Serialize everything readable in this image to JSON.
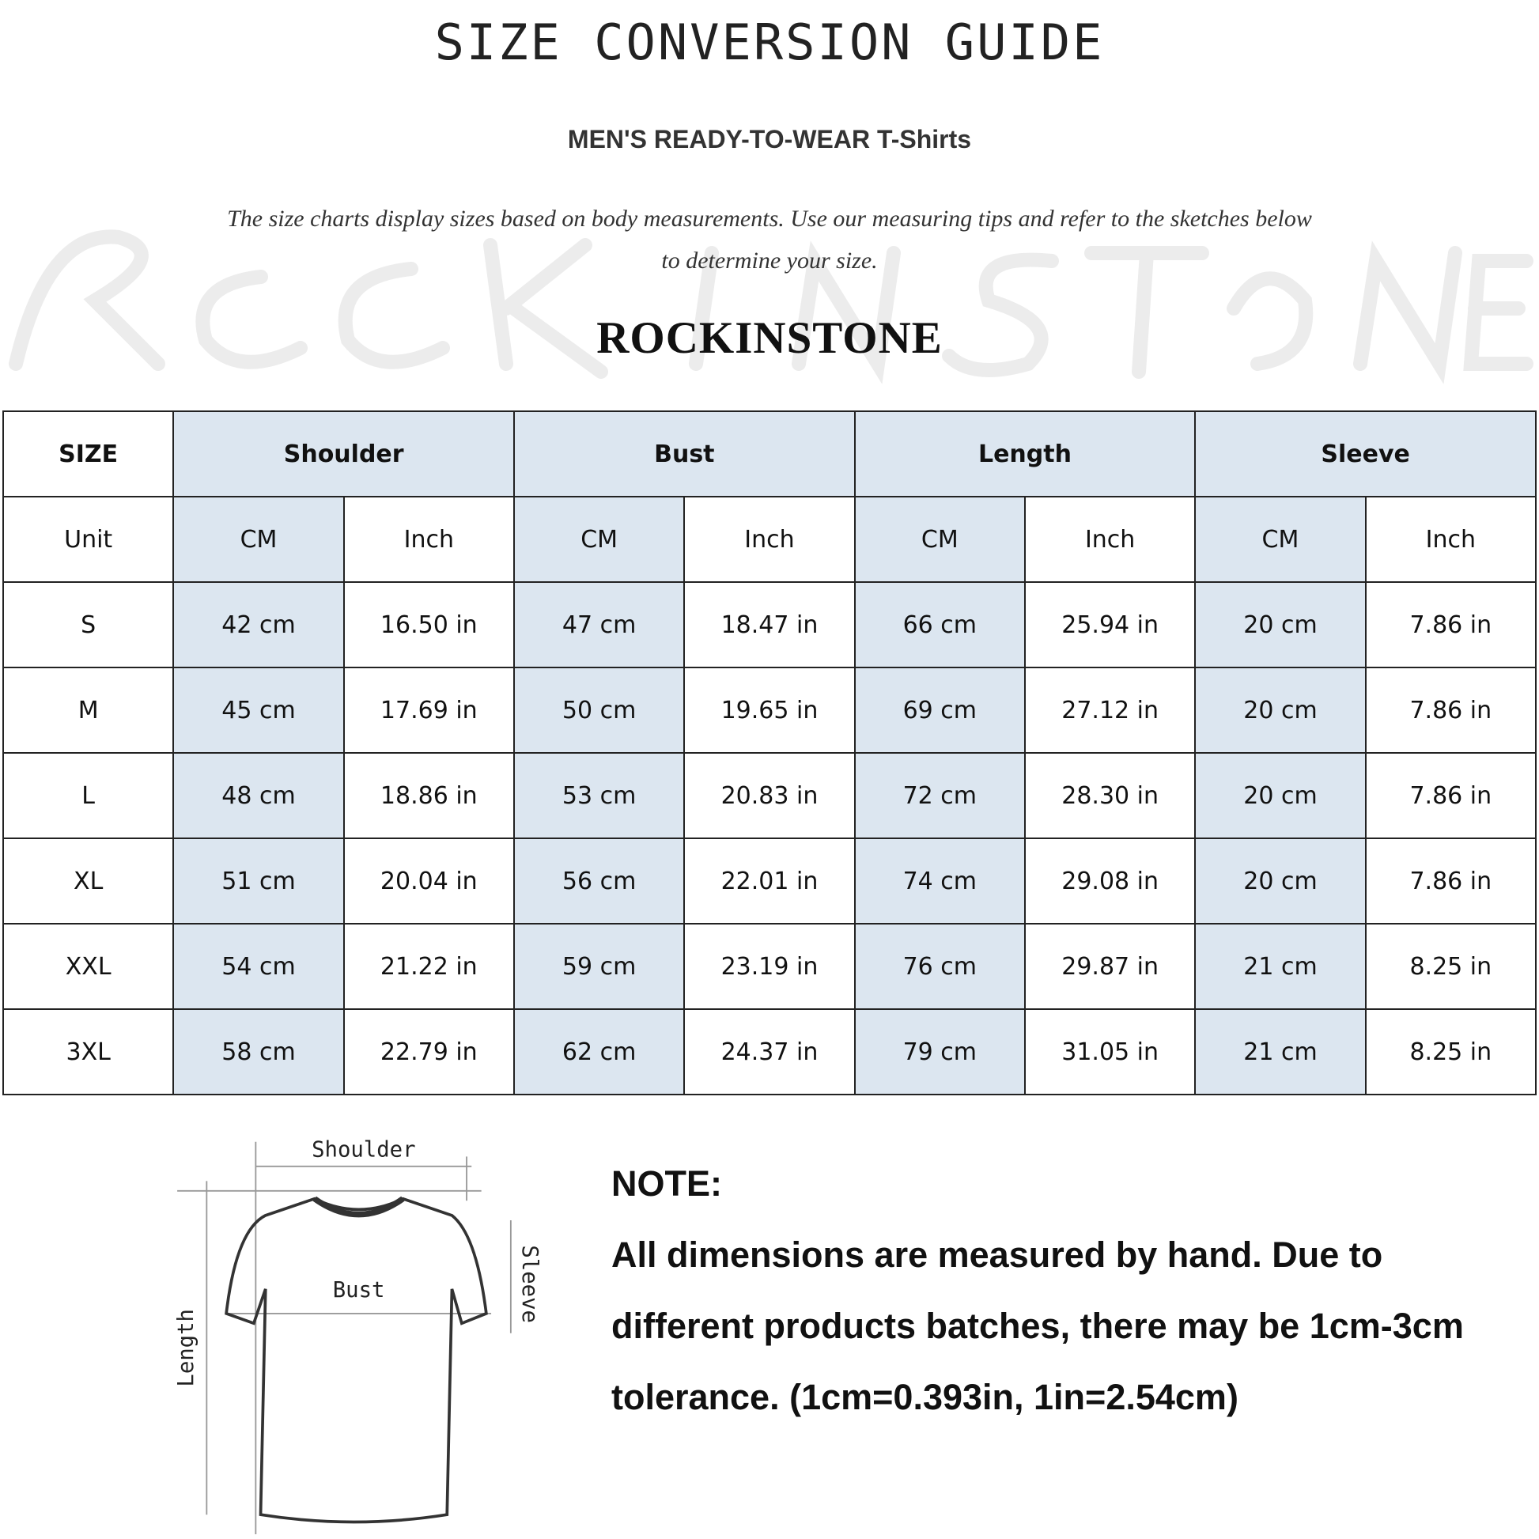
{
  "title": "SIZE CONVERSION GUIDE",
  "subtitle": "MEN'S READY-TO-WEAR T-Shirts",
  "description": "The size charts display sizes based on body measurements. Use our measuring tips and refer to the sketches below to determine your size.",
  "watermark": "ROCKINSTONE",
  "brand": "ROCKINSTONE",
  "colors": {
    "shaded_cell": "#dce6f0",
    "border": "#222222"
  },
  "table": {
    "size_header": "SIZE",
    "groups": [
      "Shoulder",
      "Bust",
      "Length",
      "Sleeve"
    ],
    "unit_label": "Unit",
    "units": [
      "CM",
      "Inch",
      "CM",
      "Inch",
      "CM",
      "Inch",
      "CM",
      "Inch"
    ],
    "rows": [
      {
        "size": "S",
        "values": [
          "42 cm",
          "16.50 in",
          "47 cm",
          "18.47 in",
          "66 cm",
          "25.94 in",
          "20 cm",
          "7.86 in"
        ]
      },
      {
        "size": "M",
        "values": [
          "45 cm",
          "17.69 in",
          "50 cm",
          "19.65 in",
          "69 cm",
          "27.12 in",
          "20 cm",
          "7.86 in"
        ]
      },
      {
        "size": "L",
        "values": [
          "48 cm",
          "18.86 in",
          "53 cm",
          "20.83 in",
          "72 cm",
          "28.30 in",
          "20 cm",
          "7.86 in"
        ]
      },
      {
        "size": "XL",
        "values": [
          "51 cm",
          "20.04 in",
          "56 cm",
          "22.01 in",
          "74 cm",
          "29.08 in",
          "20 cm",
          "7.86 in"
        ]
      },
      {
        "size": "XXL",
        "values": [
          "54 cm",
          "21.22 in",
          "59 cm",
          "23.19 in",
          "76 cm",
          "29.87 in",
          "21 cm",
          "8.25 in"
        ]
      },
      {
        "size": "3XL",
        "values": [
          "58 cm",
          "22.79 in",
          "62 cm",
          "24.37 in",
          "79 cm",
          "31.05 in",
          "21 cm",
          "8.25 in"
        ]
      }
    ]
  },
  "sketch": {
    "shoulder": "Shoulder",
    "bust": "Bust",
    "length": "Length",
    "sleeve": "Sleeve"
  },
  "note": {
    "heading": "NOTE:",
    "text": "All dimensions are measured by hand. Due to different products batches, there may be 1cm-3cm tolerance. (1cm=0.393in, 1in=2.54cm)"
  }
}
